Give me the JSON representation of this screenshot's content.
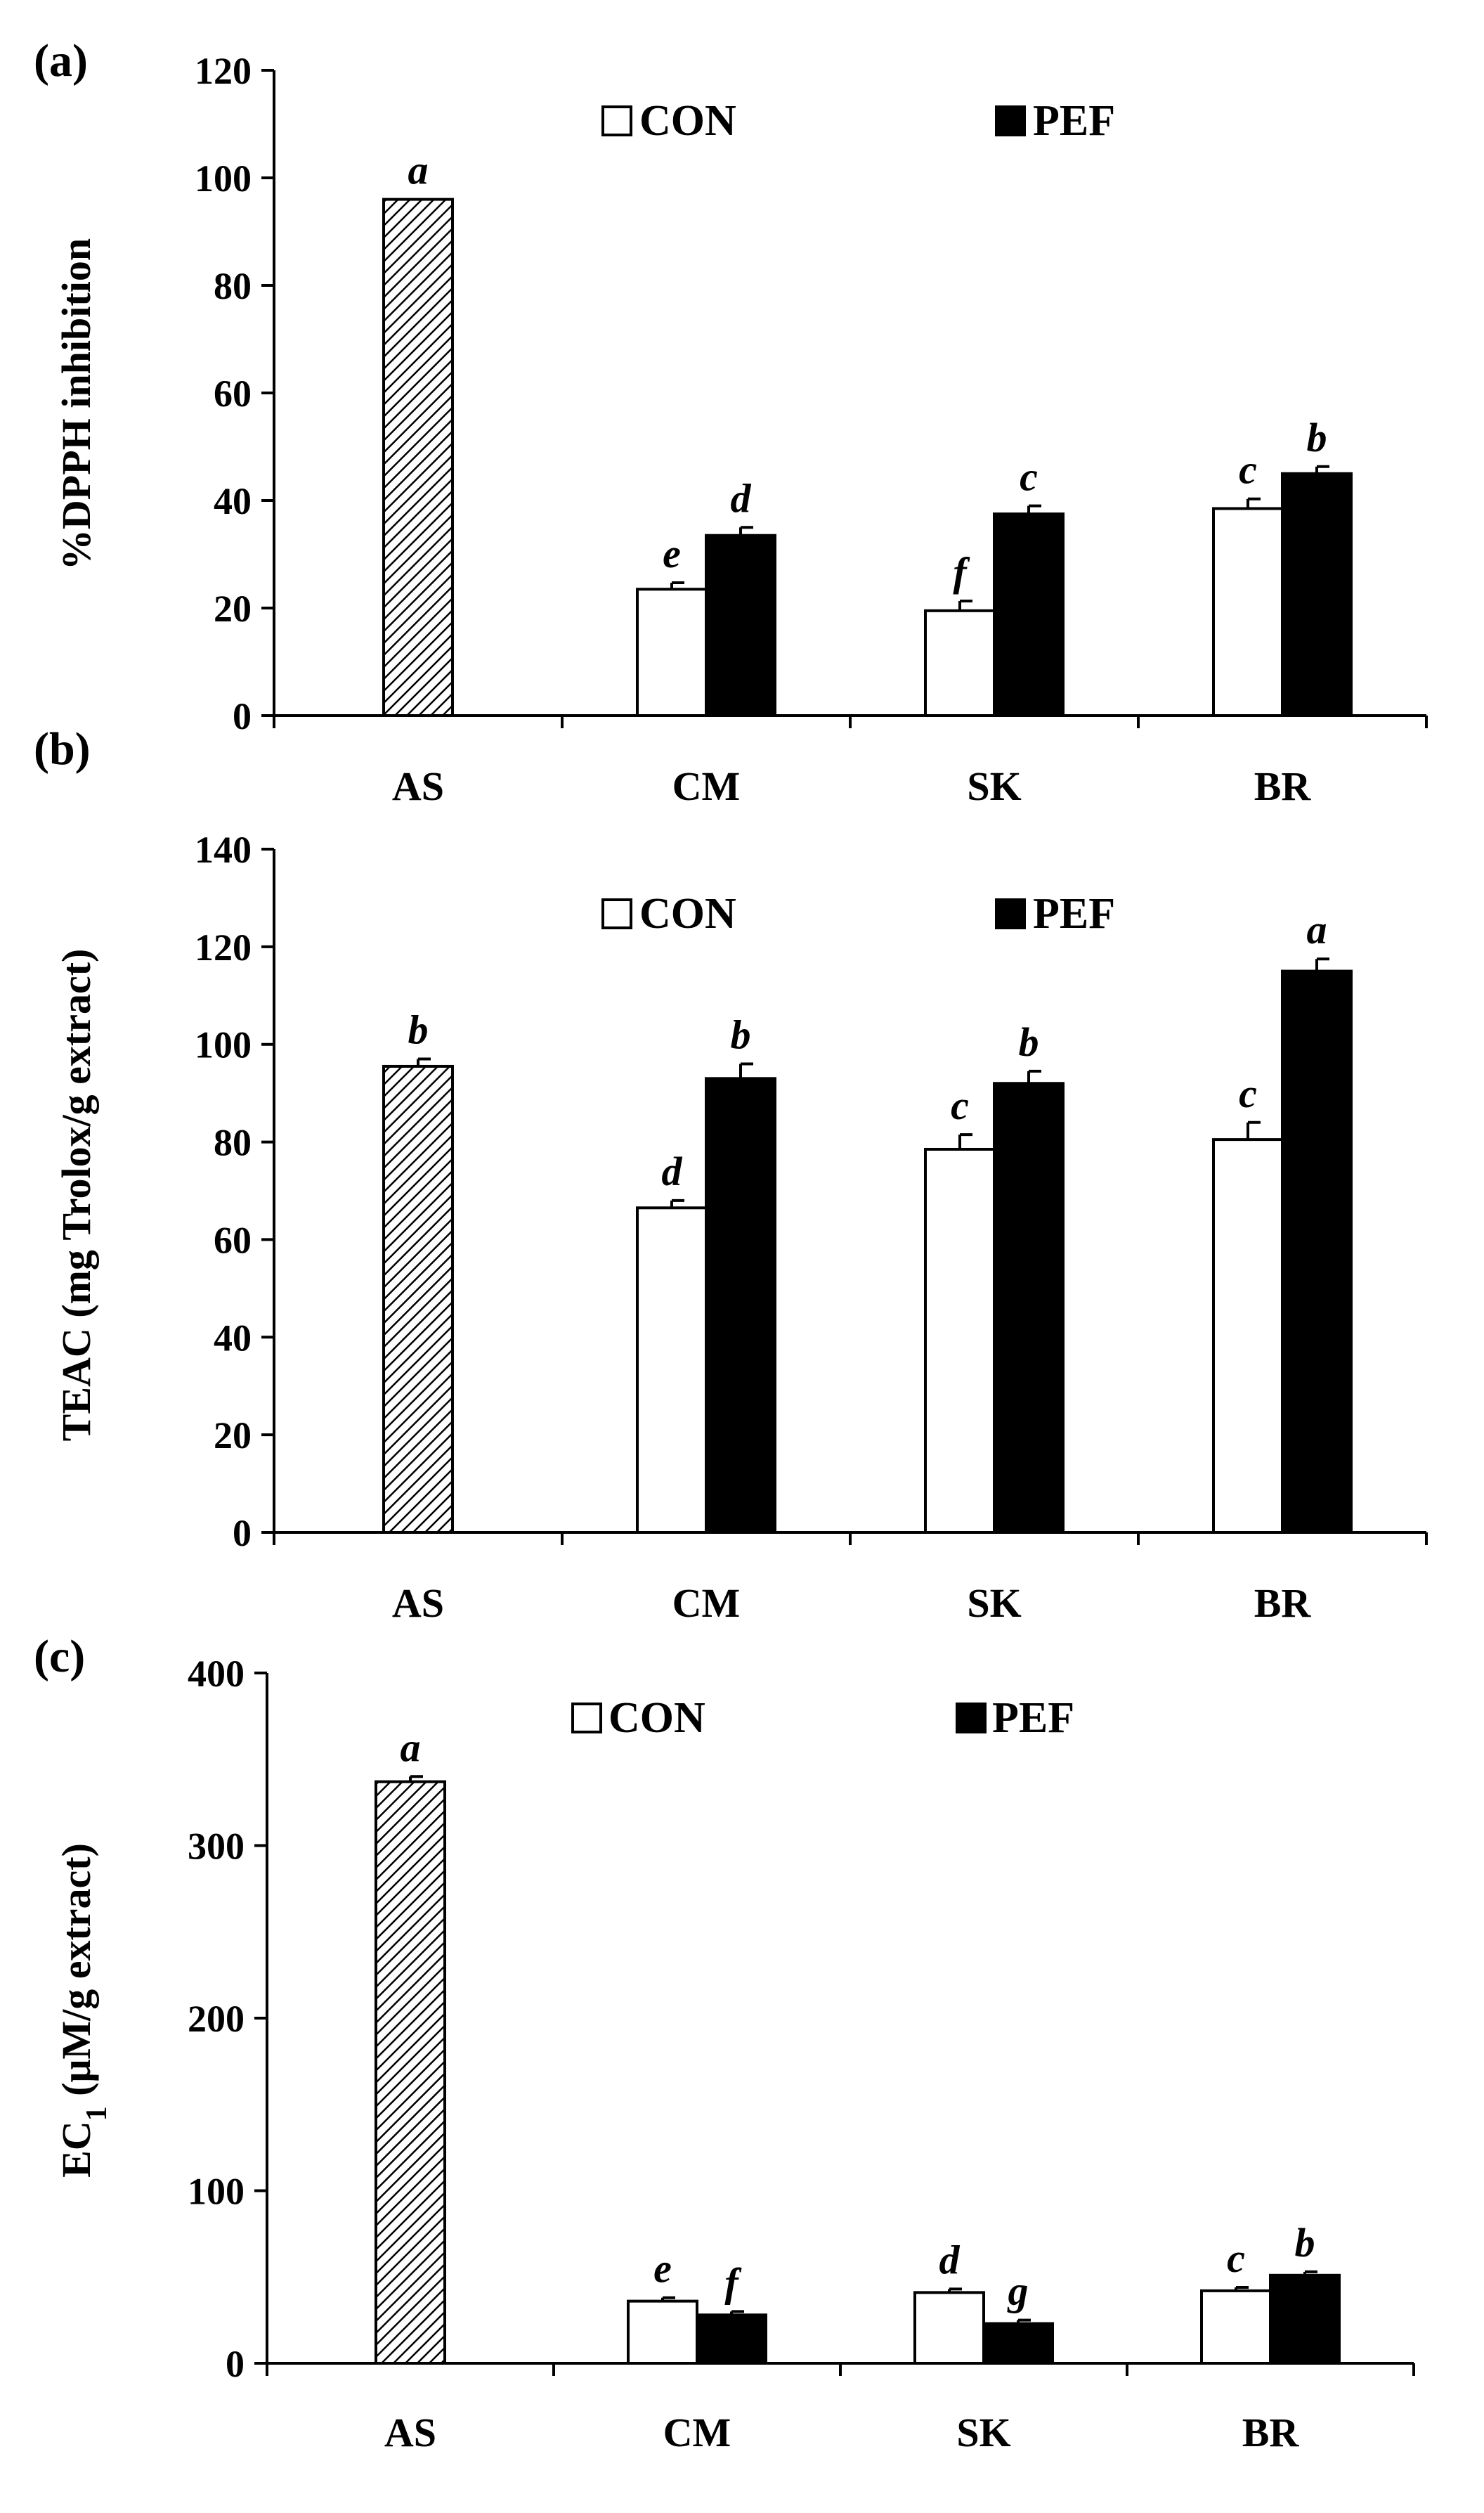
{
  "chart_data": [
    {
      "panel": "(a)",
      "type": "bar",
      "ylabel": "%DPPH inhibition",
      "ylim": [
        0,
        120
      ],
      "yticks": [
        0,
        20,
        40,
        60,
        80,
        100,
        120
      ],
      "categories": [
        "AS",
        "CM",
        "SK",
        "BR"
      ],
      "legend": [
        "CON",
        "PEF"
      ],
      "series": [
        {
          "name": "AS",
          "style": "hatched",
          "values": [
            96,
            null,
            null,
            null
          ],
          "errors": [
            0,
            null,
            null,
            null
          ],
          "sig": [
            "a",
            null,
            null,
            null
          ]
        },
        {
          "name": "CON",
          "style": "white",
          "values": [
            null,
            23.5,
            19.5,
            38.5
          ],
          "errors": [
            null,
            1.2,
            1.8,
            1.8
          ],
          "sig": [
            null,
            "e",
            "f",
            "c"
          ]
        },
        {
          "name": "PEF",
          "style": "black",
          "values": [
            null,
            33.5,
            37.5,
            45
          ],
          "errors": [
            null,
            1.5,
            1.5,
            1.3
          ],
          "sig": [
            null,
            "d",
            "c",
            "b"
          ]
        }
      ]
    },
    {
      "panel": "(b)",
      "type": "bar",
      "ylabel": "TEAC (mg Trolox/g extract)",
      "ylim": [
        0,
        140
      ],
      "yticks": [
        0,
        20,
        40,
        60,
        80,
        100,
        120,
        140
      ],
      "categories": [
        "AS",
        "CM",
        "SK",
        "BR"
      ],
      "legend": [
        "CON",
        "PEF"
      ],
      "series": [
        {
          "name": "AS",
          "style": "hatched",
          "values": [
            95.5,
            null,
            null,
            null
          ],
          "errors": [
            1.5,
            null,
            null,
            null
          ],
          "sig": [
            "b",
            null,
            null,
            null
          ]
        },
        {
          "name": "CON",
          "style": "white",
          "values": [
            null,
            66.5,
            78.5,
            80.5
          ],
          "errors": [
            null,
            1.5,
            3,
            3.5
          ],
          "sig": [
            null,
            "d",
            "c",
            "c"
          ]
        },
        {
          "name": "PEF",
          "style": "black",
          "values": [
            null,
            93,
            92,
            115
          ],
          "errors": [
            null,
            3,
            2.5,
            2.5
          ],
          "sig": [
            null,
            "b",
            "b",
            "a"
          ]
        }
      ]
    },
    {
      "panel": "(c)",
      "type": "bar",
      "ylabel": "EC",
      "ylabel_sub": "1",
      "ylabel_rest": " (μM/g extract)",
      "ylim": [
        0,
        400
      ],
      "yticks": [
        0,
        100,
        200,
        300,
        400
      ],
      "categories": [
        "AS",
        "CM",
        "SK",
        "BR"
      ],
      "legend": [
        "CON",
        "PEF"
      ],
      "series": [
        {
          "name": "AS",
          "style": "hatched",
          "values": [
            337,
            null,
            null,
            null
          ],
          "errors": [
            3,
            null,
            null,
            null
          ],
          "sig": [
            "a",
            null,
            null,
            null
          ]
        },
        {
          "name": "CON",
          "style": "white",
          "values": [
            null,
            36,
            41,
            42
          ],
          "errors": [
            null,
            2,
            2,
            2
          ],
          "sig": [
            null,
            "e",
            "d",
            "c"
          ]
        },
        {
          "name": "PEF",
          "style": "black",
          "values": [
            null,
            28,
            23,
            51
          ],
          "errors": [
            null,
            2,
            2,
            2
          ],
          "sig": [
            null,
            "f",
            "g",
            "b"
          ]
        }
      ]
    }
  ]
}
